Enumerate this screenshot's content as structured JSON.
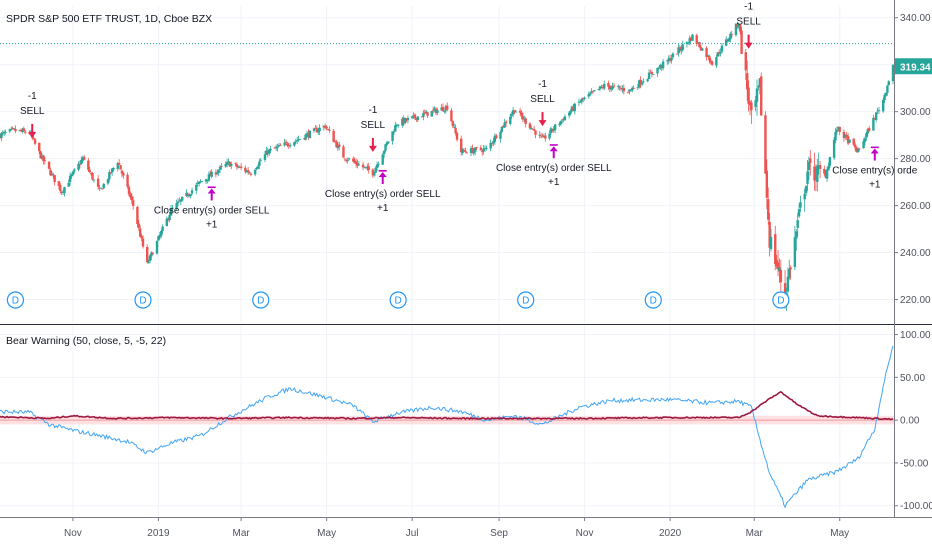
{
  "title": "SPDR S&P 500 ETF TRUST, 1D, Cboe BZX",
  "colors": {
    "up": "#26a69a",
    "down": "#ef5350",
    "sell_arrow": "#e91e4d",
    "close_arrow": "#c200c8",
    "dividend": "#2196f3",
    "indicator_line": "#42a5f5",
    "signal_line": "#9c1840",
    "band": "#ffcdd2",
    "price_level": "#26a69a",
    "price_label_bg": "#26a69a"
  },
  "icons": {
    "dividend": "circle-letter-icon",
    "sell": "down-arrow-icon",
    "close": "up-arrow-icon"
  },
  "chart_data": [
    {
      "type": "candlestick",
      "title": "SPDR S&P 500 ETF TRUST, 1D, Cboe BZX",
      "ylim": [
        210,
        345
      ],
      "y_ticks": [
        "340.00",
        "320.00",
        "300.00",
        "280.00",
        "260.00",
        "240.00",
        "220.00"
      ],
      "y_tick_values": [
        340,
        320,
        300,
        280,
        260,
        240,
        220
      ],
      "last_price": "319.34",
      "last_price_value": 319.34,
      "path_anchors": [
        [
          "2018-09-10",
          290
        ],
        [
          "2018-09-20",
          292
        ],
        [
          "2018-10-01",
          291
        ],
        [
          "2018-10-10",
          280
        ],
        [
          "2018-10-24",
          266
        ],
        [
          "2018-11-08",
          280
        ],
        [
          "2018-11-20",
          266
        ],
        [
          "2018-12-03",
          279
        ],
        [
          "2018-12-14",
          260
        ],
        [
          "2018-12-24",
          235
        ],
        [
          "2019-01-10",
          258
        ],
        [
          "2019-01-31",
          270
        ],
        [
          "2019-02-20",
          278
        ],
        [
          "2019-03-08",
          274
        ],
        [
          "2019-03-20",
          283
        ],
        [
          "2019-04-10",
          288
        ],
        [
          "2019-04-30",
          294
        ],
        [
          "2019-05-13",
          281
        ],
        [
          "2019-06-03",
          274
        ],
        [
          "2019-06-20",
          295
        ],
        [
          "2019-07-26",
          302
        ],
        [
          "2019-08-05",
          283
        ],
        [
          "2019-08-23",
          284
        ],
        [
          "2019-09-12",
          301
        ],
        [
          "2019-10-02",
          288
        ],
        [
          "2019-10-28",
          304
        ],
        [
          "2019-11-15",
          311
        ],
        [
          "2019-12-03",
          309
        ],
        [
          "2019-12-31",
          322
        ],
        [
          "2020-01-17",
          332
        ],
        [
          "2020-01-31",
          321
        ],
        [
          "2020-02-19",
          338
        ],
        [
          "2020-02-28",
          296
        ],
        [
          "2020-03-05",
          310
        ],
        [
          "2020-03-12",
          246
        ],
        [
          "2020-03-23",
          222
        ],
        [
          "2020-04-08",
          275
        ],
        [
          "2020-04-21",
          273
        ],
        [
          "2020-04-29",
          293
        ],
        [
          "2020-05-14",
          283
        ],
        [
          "2020-06-01",
          305
        ],
        [
          "2020-06-08",
          320
        ]
      ],
      "horizontal_level": 329,
      "dividend_markers": [
        "2018-09-21",
        "2018-12-21",
        "2019-03-15",
        "2019-06-21",
        "2019-09-20",
        "2019-12-20",
        "2020-03-20"
      ],
      "dividend_label": "D",
      "annotations": [
        {
          "kind": "sell",
          "date": "2018-10-03",
          "price": 288,
          "lines": [
            "-1",
            "SELL"
          ]
        },
        {
          "kind": "close",
          "date": "2019-02-08",
          "price": 269,
          "lines": [
            "Close entry(s) order SELL",
            "+1"
          ]
        },
        {
          "kind": "sell",
          "date": "2019-06-03",
          "price": 282,
          "lines": [
            "-1",
            "SELL"
          ]
        },
        {
          "kind": "close",
          "date": "2019-06-10",
          "price": 276,
          "lines": [
            "Close entry(s) order SELL",
            "+1"
          ]
        },
        {
          "kind": "sell",
          "date": "2019-10-02",
          "price": 293,
          "lines": [
            "-1",
            "SELL"
          ]
        },
        {
          "kind": "close",
          "date": "2019-10-10",
          "price": 287,
          "lines": [
            "Close entry(s) order SELL",
            "+1"
          ]
        },
        {
          "kind": "sell",
          "date": "2020-02-26",
          "price": 326,
          "lines": [
            "-1",
            "SELL"
          ]
        },
        {
          "kind": "close",
          "date": "2020-05-26",
          "price": 286,
          "lines": [
            "Close entry(s) orde",
            "+1"
          ]
        }
      ]
    },
    {
      "type": "line",
      "title": "Bear Warning (50, close, 5, -5, 22)",
      "ylim": [
        -112,
        110
      ],
      "y_ticks": [
        "100.00",
        "50.00",
        "0.00",
        "-50.00",
        "-100.00"
      ],
      "y_tick_values": [
        100,
        50,
        0,
        -50,
        -100
      ],
      "band": [
        -5,
        5
      ],
      "series": [
        {
          "role": "indicator",
          "anchors": [
            [
              "2018-09-10",
              10
            ],
            [
              "2018-10-01",
              9
            ],
            [
              "2018-10-15",
              -5
            ],
            [
              "2018-11-01",
              -12
            ],
            [
              "2018-11-20",
              -18
            ],
            [
              "2018-12-10",
              -25
            ],
            [
              "2018-12-24",
              -38
            ],
            [
              "2019-01-10",
              -27
            ],
            [
              "2019-01-31",
              -18
            ],
            [
              "2019-02-20",
              3
            ],
            [
              "2019-03-20",
              27
            ],
            [
              "2019-04-05",
              37
            ],
            [
              "2019-04-30",
              27
            ],
            [
              "2019-05-20",
              17
            ],
            [
              "2019-06-03",
              -2
            ],
            [
              "2019-06-20",
              8
            ],
            [
              "2019-07-15",
              15
            ],
            [
              "2019-08-05",
              10
            ],
            [
              "2019-08-23",
              0
            ],
            [
              "2019-09-12",
              5
            ],
            [
              "2019-10-02",
              -5
            ],
            [
              "2019-10-28",
              15
            ],
            [
              "2019-11-20",
              23
            ],
            [
              "2019-12-31",
              24
            ],
            [
              "2020-01-31",
              20
            ],
            [
              "2020-02-19",
              22
            ],
            [
              "2020-02-28",
              15
            ],
            [
              "2020-03-05",
              -22
            ],
            [
              "2020-03-12",
              -62
            ],
            [
              "2020-03-23",
              -100
            ],
            [
              "2020-04-08",
              -70
            ],
            [
              "2020-04-29",
              -60
            ],
            [
              "2020-05-14",
              -45
            ],
            [
              "2020-05-26",
              -10
            ],
            [
              "2020-06-01",
              40
            ],
            [
              "2020-06-08",
              88
            ]
          ]
        },
        {
          "role": "signal",
          "anchors": [
            [
              "2018-09-10",
              4
            ],
            [
              "2018-10-15",
              2
            ],
            [
              "2018-11-01",
              5
            ],
            [
              "2018-12-01",
              2
            ],
            [
              "2019-01-10",
              3
            ],
            [
              "2019-02-20",
              2
            ],
            [
              "2019-04-05",
              3
            ],
            [
              "2019-05-20",
              2
            ],
            [
              "2019-06-20",
              3
            ],
            [
              "2019-08-05",
              2
            ],
            [
              "2019-10-28",
              2
            ],
            [
              "2019-12-31",
              3
            ],
            [
              "2020-02-19",
              3
            ],
            [
              "2020-02-28",
              10
            ],
            [
              "2020-03-12",
              25
            ],
            [
              "2020-03-20",
              33
            ],
            [
              "2020-04-01",
              18
            ],
            [
              "2020-04-15",
              5
            ],
            [
              "2020-05-14",
              3
            ],
            [
              "2020-06-08",
              1
            ]
          ]
        }
      ]
    }
  ],
  "x_axis": {
    "start": "2018-09-10",
    "end": "2020-06-08",
    "labels": [
      {
        "date": "2018-11-01",
        "text": "Nov"
      },
      {
        "date": "2019-01-01",
        "text": "2019"
      },
      {
        "date": "2019-03-01",
        "text": "Mar"
      },
      {
        "date": "2019-05-01",
        "text": "May"
      },
      {
        "date": "2019-07-01",
        "text": "Jul"
      },
      {
        "date": "2019-09-01",
        "text": "Sep"
      },
      {
        "date": "2019-11-01",
        "text": "Nov"
      },
      {
        "date": "2020-01-01",
        "text": "2020"
      },
      {
        "date": "2020-03-01",
        "text": "Mar"
      },
      {
        "date": "2020-05-01",
        "text": "May"
      }
    ]
  }
}
